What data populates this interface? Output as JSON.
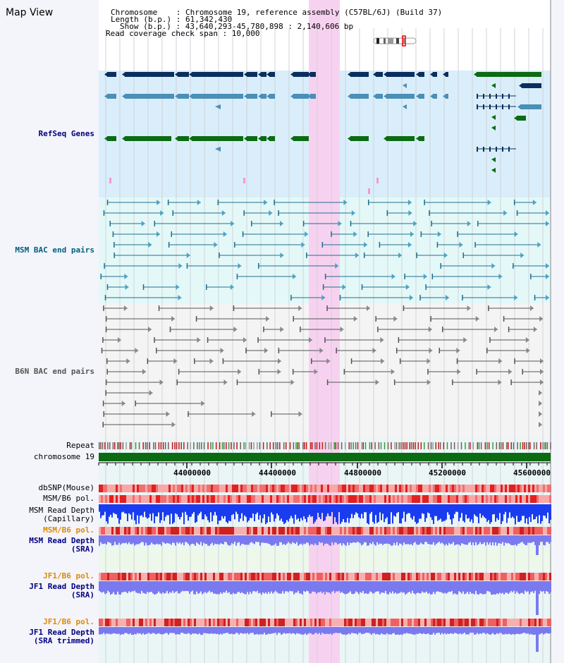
{
  "window": {
    "title": "Map View"
  },
  "info": {
    "chromosome_line": "Chromosome    : Chromosome 19, reference assembly (C57BL/6J) (Build 37)",
    "length_line": "Length (b.p.) : 61,342,430",
    "show_line": "Show (b.p.) : 43,640,293-45,780,898 : 2,140,606 bp",
    "coverage_line": "Read coverage check span : 10,000"
  },
  "tracks": {
    "refseq": "RefSeq Genes",
    "msm_bac": "MSM BAC end pairs",
    "b6n_bac": "B6N BAC end pairs",
    "repeat": "Repeat",
    "chromosome": "chromosome 19",
    "dbsnp": "dbSNP(Mouse)",
    "msm_b6_pol": "MSM/B6 pol.",
    "msm_read_depth_cap_1": "MSM Read Depth",
    "msm_read_depth_cap_2": "(Capillary)",
    "msm_b6_pol_2": "MSM/B6 pol.",
    "msm_read_depth_sra_1": "MSM Read Depth",
    "msm_read_depth_sra_2": "(SRA)",
    "jf1_b6_pol": "JF1/B6 pol.",
    "jf1_read_depth_1": "JF1 Read Depth",
    "jf1_read_depth_2": "(SRA)",
    "jf1_b6_pol_2": "JF1/B6 pol.",
    "jf1_read_depth_trim_1": "JF1 Read Depth",
    "jf1_read_depth_trim_2": "(SRA trimmed)"
  },
  "axis": {
    "ticks": [
      "44000000",
      "44400000",
      "44800000",
      "45200000",
      "45600000"
    ]
  },
  "colors": {
    "highlight": "#f7d2f0",
    "refseq_bg": "#d9eefa",
    "msm_bg": "#e4f8f8",
    "b6n_bg": "#f4f4f4",
    "gene_dark": "#0a2f5e",
    "gene_mid": "#4a8fb8",
    "gene_green": "#0b6b12",
    "msm_line": "#1f6f8f",
    "b6n_line": "#555555",
    "chrom_bar": "#0b6b12",
    "depth_blue": "#1a3cf0",
    "depth_light": "#7a7af0"
  }
}
